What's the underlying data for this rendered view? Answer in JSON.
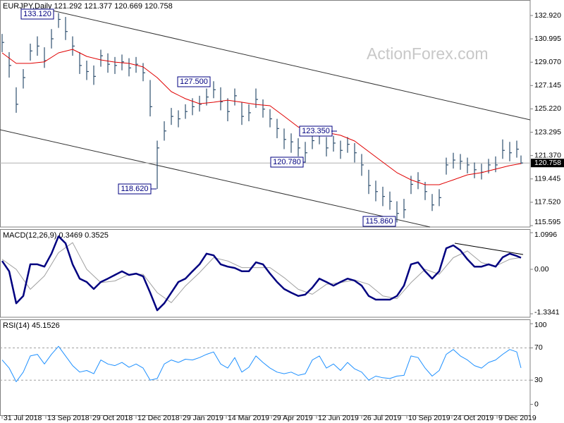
{
  "chart_data": [
    {
      "type": "ohlc",
      "title": "EURJPY,Daily  121.292 121.377 120.669 120.758",
      "watermark": "ActionForex.com",
      "color": "#2f4f6f",
      "xlim": [
        -1.5,
        374.5
      ],
      "ylim": [
        115.479,
        134.199
      ],
      "yticks": [
        {
          "value": 132.92,
          "label": "132.920"
        },
        {
          "value": 130.995,
          "label": "130.995"
        },
        {
          "value": 129.07,
          "label": "129.070"
        },
        {
          "value": 127.145,
          "label": "127.145"
        },
        {
          "value": 125.22,
          "label": "125.220"
        },
        {
          "value": 123.295,
          "label": "123.295"
        },
        {
          "value": 121.37,
          "label": "121.370"
        },
        {
          "value": 119.445,
          "label": "119.445"
        },
        {
          "value": 117.52,
          "label": "117.520"
        },
        {
          "value": 115.595,
          "label": "115.595"
        }
      ],
      "last_price": {
        "value": 120.758,
        "label": "120.758"
      },
      "x": [
        0,
        5,
        10,
        15,
        20,
        25,
        30,
        35,
        40,
        45,
        50,
        55,
        60,
        65,
        70,
        75,
        80,
        85,
        90,
        95,
        100,
        105,
        110,
        115,
        120,
        125,
        130,
        135,
        140,
        145,
        150,
        155,
        160,
        165,
        170,
        175,
        180,
        185,
        190,
        195,
        200,
        205,
        210,
        215,
        220,
        225,
        230,
        235,
        240,
        245,
        250,
        255,
        260,
        265,
        270,
        275,
        280,
        285,
        290,
        295,
        300,
        305,
        310,
        315,
        320,
        325,
        330,
        335,
        340,
        345,
        350,
        355,
        360,
        365,
        368
      ],
      "high": [
        131.4,
        129.9,
        127.0,
        128.5,
        130.6,
        131.2,
        130.3,
        131.8,
        133.12,
        132.8,
        131.2,
        129.9,
        129.2,
        128.8,
        130.1,
        129.8,
        129.5,
        129.7,
        129.4,
        129.5,
        129.0,
        127.6,
        122.6,
        124.2,
        125.3,
        125.1,
        125.6,
        126.1,
        126.3,
        126.9,
        127.5,
        127.0,
        126.1,
        126.9,
        125.8,
        125.6,
        126.9,
        126.0,
        125.2,
        124.4,
        123.6,
        123.2,
        122.8,
        122.5,
        123.2,
        123.35,
        122.9,
        123.0,
        122.6,
        122.9,
        122.4,
        121.5,
        120.2,
        119.3,
        118.8,
        118.4,
        117.6,
        117.8,
        119.7,
        120.0,
        119.2,
        118.2,
        118.6,
        121.2,
        121.6,
        121.5,
        121.2,
        120.8,
        120.7,
        121.1,
        121.3,
        122.7,
        122.5,
        122.6,
        121.377
      ],
      "low": [
        129.9,
        127.8,
        124.9,
        126.9,
        129.2,
        129.6,
        128.6,
        130.2,
        131.9,
        130.9,
        129.6,
        128.1,
        127.6,
        127.2,
        128.7,
        128.2,
        128.1,
        128.4,
        127.9,
        128.2,
        127.5,
        124.6,
        118.62,
        122.6,
        123.9,
        123.7,
        124.4,
        124.7,
        125.0,
        125.5,
        126.1,
        125.1,
        124.2,
        125.5,
        123.9,
        124.2,
        125.3,
        124.5,
        123.7,
        122.8,
        121.9,
        121.6,
        121.3,
        120.78,
        121.9,
        122.3,
        121.3,
        121.7,
        121.1,
        121.6,
        120.8,
        119.7,
        118.2,
        117.6,
        117.2,
        116.9,
        115.86,
        116.2,
        118.2,
        118.6,
        117.7,
        116.8,
        117.2,
        119.8,
        120.3,
        120.2,
        119.9,
        119.5,
        119.4,
        119.9,
        120.0,
        121.1,
        120.9,
        121.2,
        120.669
      ],
      "close": [
        130.7,
        128.8,
        125.6,
        127.8,
        130.0,
        130.4,
        129.2,
        131.0,
        132.6,
        131.6,
        130.4,
        128.8,
        128.3,
        127.9,
        129.6,
        128.9,
        128.8,
        129.1,
        128.6,
        128.9,
        128.2,
        125.4,
        122.0,
        123.4,
        124.6,
        124.4,
        125.0,
        125.4,
        125.6,
        126.2,
        126.8,
        125.8,
        125.0,
        126.3,
        124.6,
        124.9,
        126.0,
        125.2,
        124.4,
        123.6,
        122.7,
        122.5,
        122.0,
        121.6,
        122.6,
        123.0,
        122.0,
        122.4,
        121.8,
        122.3,
        121.6,
        120.6,
        118.9,
        118.4,
        118.0,
        117.6,
        116.6,
        116.9,
        119.0,
        119.3,
        118.4,
        117.3,
        117.9,
        120.6,
        121.0,
        120.9,
        120.6,
        120.2,
        120.0,
        120.6,
        120.6,
        121.8,
        121.6,
        121.9,
        120.758
      ],
      "ma": {
        "color": "#e00000",
        "x": [
          0,
          10,
          20,
          30,
          40,
          50,
          60,
          70,
          80,
          90,
          100,
          110,
          120,
          130,
          140,
          150,
          160,
          170,
          180,
          190,
          200,
          210,
          220,
          230,
          240,
          250,
          260,
          270,
          280,
          290,
          300,
          310,
          320,
          330,
          340,
          350,
          360,
          368
        ],
        "values": [
          129.84,
          128.97,
          128.97,
          129.1,
          129.84,
          130.13,
          129.55,
          129.26,
          129.08,
          128.97,
          128.68,
          127.8,
          126.64,
          126.06,
          125.65,
          125.77,
          125.94,
          125.77,
          125.59,
          125.48,
          124.61,
          123.73,
          123.44,
          123.27,
          123.04,
          122.57,
          121.7,
          120.83,
          119.96,
          119.37,
          118.97,
          118.97,
          119.37,
          119.78,
          119.96,
          120.25,
          120.54,
          120.71
        ]
      },
      "annotations": [
        {
          "text": "133.120"
        },
        {
          "text": "127.500"
        },
        {
          "text": "118.620"
        },
        {
          "text": "123.350"
        },
        {
          "text": "120.780"
        },
        {
          "text": "115.860"
        }
      ]
    },
    {
      "type": "line",
      "title": "MACD(12,26,9) 0.3469 0.3525",
      "xlim": [
        -1.5,
        374.5
      ],
      "ylim": [
        -1.439,
        1.185
      ],
      "yticks": [
        1.0996,
        {
          "value": 0,
          "label": "0.00"
        },
        -1.3341
      ],
      "lines": [
        {
          "color": "#000080",
          "width": 2.5,
          "x": [
            0,
            5,
            10,
            15,
            20,
            25,
            30,
            35,
            40,
            45,
            50,
            55,
            60,
            65,
            70,
            75,
            80,
            85,
            90,
            95,
            100,
            105,
            110,
            115,
            120,
            125,
            130,
            135,
            140,
            145,
            150,
            155,
            160,
            165,
            170,
            175,
            180,
            185,
            190,
            195,
            200,
            205,
            210,
            215,
            220,
            225,
            230,
            235,
            240,
            245,
            250,
            255,
            260,
            265,
            270,
            275,
            280,
            285,
            290,
            295,
            300,
            305,
            310,
            315,
            320,
            325,
            330,
            335,
            340,
            345,
            350,
            355,
            360,
            365,
            368
          ],
          "values": [
            0.25,
            -0.06,
            -1.02,
            -0.8,
            0.15,
            0.15,
            0.08,
            0.47,
            0.99,
            0.78,
            0.15,
            -0.28,
            -0.38,
            -0.59,
            -0.38,
            -0.28,
            -0.17,
            -0.06,
            -0.17,
            -0.13,
            -0.21,
            -0.7,
            -1.23,
            -1.02,
            -0.7,
            -0.38,
            -0.28,
            -0.06,
            0.15,
            0.47,
            0.42,
            0.15,
            0.08,
            0.04,
            -0.06,
            -0.06,
            0.21,
            0.15,
            -0.13,
            -0.38,
            -0.59,
            -0.7,
            -0.8,
            -0.76,
            -0.55,
            -0.28,
            -0.38,
            -0.49,
            -0.38,
            -0.28,
            -0.34,
            -0.49,
            -0.8,
            -0.91,
            -0.91,
            -0.91,
            -0.8,
            -0.49,
            0.15,
            0.21,
            -0.06,
            -0.28,
            -0.06,
            0.63,
            0.72,
            0.57,
            0.3,
            0.08,
            0.08,
            0.15,
            0.08,
            0.36,
            0.47,
            0.4,
            0.3469
          ]
        },
        {
          "color": "#a0a0a0",
          "width": 1,
          "x": [
            0,
            10,
            20,
            30,
            40,
            50,
            60,
            70,
            80,
            90,
            100,
            110,
            120,
            130,
            140,
            150,
            160,
            170,
            180,
            190,
            200,
            210,
            220,
            230,
            240,
            250,
            260,
            270,
            280,
            290,
            300,
            310,
            320,
            330,
            340,
            350,
            360,
            368
          ],
          "values": [
            0.3,
            0.0,
            -0.6,
            -0.2,
            0.5,
            0.8,
            0.0,
            -0.4,
            -0.35,
            -0.15,
            -0.15,
            -0.7,
            -1.0,
            -0.5,
            -0.1,
            0.35,
            0.25,
            0.05,
            0.05,
            0.05,
            -0.25,
            -0.6,
            -0.75,
            -0.45,
            -0.4,
            -0.32,
            -0.45,
            -0.8,
            -0.88,
            -0.4,
            0.0,
            -0.15,
            0.35,
            0.55,
            0.2,
            0.1,
            0.3,
            0.3525
          ]
        }
      ]
    },
    {
      "type": "line",
      "title": "RSI(14) 45.1526",
      "xlim": [
        -1.5,
        374.5
      ],
      "ylim": [
        -14.4,
        104.5
      ],
      "yticks": [
        100,
        70,
        30,
        0
      ],
      "level_lines": [
        70,
        30
      ],
      "xticks": [
        {
          "value": 0,
          "label": "31 Jul 2018"
        },
        {
          "value": 31,
          "label": "13 Sep 2018"
        },
        {
          "value": 63,
          "label": "29 Oct 2018"
        },
        {
          "value": 95,
          "label": "12 Dec 2018"
        },
        {
          "value": 127,
          "label": "29 Jan 2019"
        },
        {
          "value": 159,
          "label": "14 Mar 2019"
        },
        {
          "value": 191,
          "label": "29 Apr 2019"
        },
        {
          "value": 223,
          "label": "12 Jun 2019"
        },
        {
          "value": 255,
          "label": "26 Jul 2019"
        },
        {
          "value": 287,
          "label": "10 Sep 2019"
        },
        {
          "value": 319,
          "label": "24 Oct 2019"
        },
        {
          "value": 351,
          "label": "9 Dec 2019"
        }
      ],
      "lines": [
        {
          "color": "#1e90ff",
          "width": 1,
          "x": [
            0,
            5,
            10,
            15,
            20,
            25,
            30,
            35,
            40,
            45,
            50,
            55,
            60,
            65,
            70,
            75,
            80,
            85,
            90,
            95,
            100,
            105,
            110,
            115,
            120,
            125,
            130,
            135,
            140,
            145,
            150,
            155,
            160,
            165,
            170,
            175,
            180,
            185,
            190,
            195,
            200,
            205,
            210,
            215,
            220,
            225,
            230,
            235,
            240,
            245,
            250,
            255,
            260,
            265,
            270,
            275,
            280,
            285,
            290,
            295,
            300,
            305,
            310,
            315,
            320,
            325,
            330,
            335,
            340,
            345,
            350,
            355,
            360,
            365,
            368
          ],
          "values": [
            55,
            45,
            28,
            40,
            60,
            62,
            50,
            62,
            72,
            60,
            48,
            40,
            42,
            38,
            55,
            50,
            48,
            52,
            46,
            50,
            45,
            30,
            32,
            50,
            55,
            52,
            56,
            55,
            58,
            62,
            65,
            50,
            45,
            58,
            40,
            46,
            60,
            52,
            45,
            40,
            38,
            40,
            36,
            38,
            55,
            60,
            45,
            50,
            42,
            52,
            44,
            40,
            30,
            35,
            33,
            32,
            35,
            36,
            60,
            58,
            45,
            35,
            42,
            62,
            68,
            60,
            55,
            48,
            45,
            52,
            55,
            62,
            68,
            65,
            45.1526
          ]
        }
      ]
    }
  ]
}
